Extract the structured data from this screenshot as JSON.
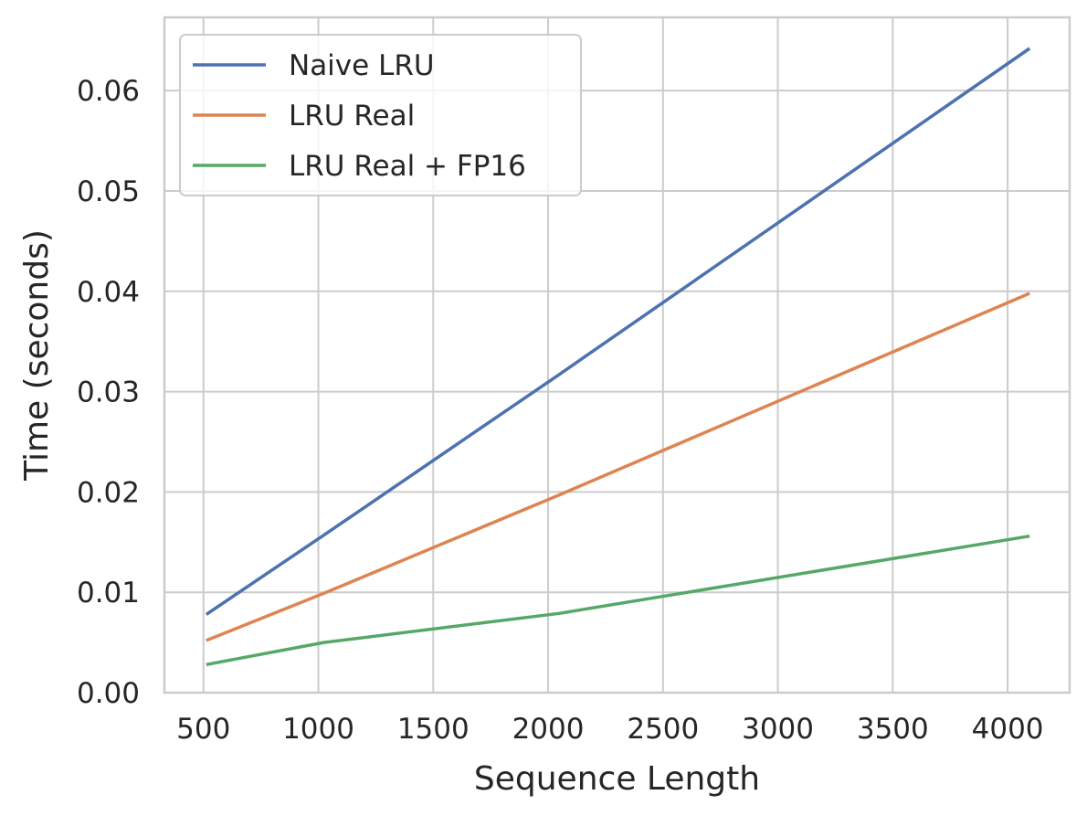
{
  "chart_data": {
    "type": "line",
    "title": "",
    "xlabel": "Sequence Length",
    "ylabel": "Time (seconds)",
    "xlim": [
      330,
      4270
    ],
    "ylim": [
      0.0,
      0.0673
    ],
    "xticks": [
      500,
      1000,
      1500,
      2000,
      2500,
      3000,
      3500,
      4000
    ],
    "xtick_labels": [
      "500",
      "1000",
      "1500",
      "2000",
      "2500",
      "3000",
      "3500",
      "4000"
    ],
    "yticks": [
      0.0,
      0.01,
      0.02,
      0.03,
      0.04,
      0.05,
      0.06
    ],
    "ytick_labels": [
      "0.00",
      "0.01",
      "0.02",
      "0.03",
      "0.04",
      "0.05",
      "0.06"
    ],
    "grid": true,
    "legend_position": "top-left",
    "x": [
      512,
      1024,
      2048,
      4096
    ],
    "series": [
      {
        "name": "Naive LRU",
        "color": "#4c72b0",
        "values": [
          0.0078,
          0.0157,
          0.0317,
          0.0642
        ]
      },
      {
        "name": "LRU Real",
        "color": "#dd8452",
        "values": [
          0.0052,
          0.0099,
          0.0197,
          0.0398
        ]
      },
      {
        "name": "LRU Real + FP16",
        "color": "#55a868",
        "values": [
          0.0028,
          0.005,
          0.0079,
          0.0156
        ]
      }
    ]
  }
}
